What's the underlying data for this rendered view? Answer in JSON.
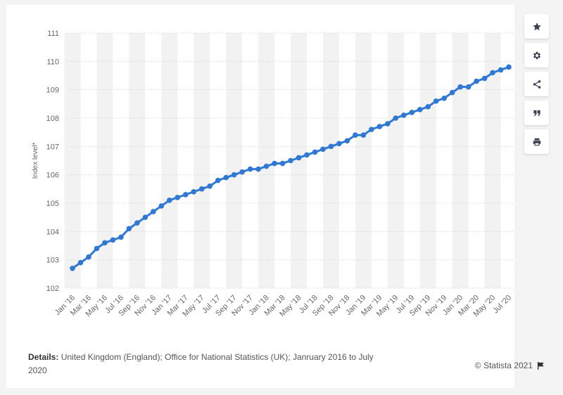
{
  "toolbar": {
    "icons": [
      "star-icon",
      "gear-icon",
      "share-icon",
      "quote-icon",
      "print-icon"
    ]
  },
  "footer": {
    "details_label": "Details:",
    "details_text": "United Kingdom (England); Office for National Statistics (UK); Janruary 2016 to July 2020",
    "credit": "© Statista 2021"
  },
  "colors": {
    "line": "#2f78d3",
    "grid": "#d0d0d0",
    "band": "#f2f2f2"
  },
  "chart_data": {
    "type": "line",
    "title": "",
    "xlabel": "",
    "ylabel": "Index level*",
    "ylim": [
      102,
      111
    ],
    "yticks": [
      102,
      103,
      104,
      105,
      106,
      107,
      108,
      109,
      110,
      111
    ],
    "grid": true,
    "categories": [
      "Jan '16",
      "Feb '16",
      "Mar '16",
      "Apr '16",
      "May '16",
      "Jun '16",
      "Jul '16",
      "Aug '16",
      "Sep '16",
      "Oct '16",
      "Nov '16",
      "Dec '16",
      "Jan '17",
      "Feb '17",
      "Mar '17",
      "Apr '17",
      "May '17",
      "Jun '17",
      "Jul '17",
      "Aug '17",
      "Sep '17",
      "Oct '17",
      "Nov '17",
      "Dec '17",
      "Jan '18",
      "Feb '18",
      "Mar '18",
      "Apr '18",
      "May '18",
      "Jun '18",
      "Jul '18",
      "Aug '18",
      "Sep '18",
      "Oct '18",
      "Nov '18",
      "Dec '18",
      "Jan '19",
      "Feb '19",
      "Mar '19",
      "Apr '19",
      "May '19",
      "Jun '19",
      "Jul '19",
      "Aug '19",
      "Sep '19",
      "Oct '19",
      "Nov '19",
      "Dec '19",
      "Jan '20",
      "Feb '20",
      "Mar '20",
      "Apr '20",
      "May '20",
      "Jun '20",
      "Jul '20"
    ],
    "tick_labels": [
      "Jan '16",
      "Mar '16",
      "May '16",
      "Jul '16",
      "Sep '16",
      "Nov '16",
      "Jan '17",
      "Mar '17",
      "May '17",
      "Jul '17",
      "Sep '17",
      "Nov '17",
      "Jan '18",
      "Mar '18",
      "May '18",
      "Jul '18",
      "Sep '18",
      "Nov '18",
      "Jan '19",
      "Mar '19",
      "May '19",
      "Jul '19",
      "Sep '19",
      "Nov '19",
      "Jan '20",
      "Mar '20",
      "May '20",
      "Jul '20"
    ],
    "values": [
      102.7,
      102.9,
      103.1,
      103.4,
      103.6,
      103.7,
      103.8,
      104.1,
      104.3,
      104.5,
      104.7,
      104.9,
      105.1,
      105.2,
      105.3,
      105.4,
      105.5,
      105.6,
      105.8,
      105.9,
      106.0,
      106.1,
      106.2,
      106.2,
      106.3,
      106.4,
      106.4,
      106.5,
      106.6,
      106.7,
      106.8,
      106.9,
      107.0,
      107.1,
      107.2,
      107.4,
      107.4,
      107.6,
      107.7,
      107.8,
      108.0,
      108.1,
      108.2,
      108.3,
      108.4,
      108.6,
      108.7,
      108.9,
      109.1,
      109.1,
      109.3,
      109.4,
      109.6,
      109.7,
      109.8
    ]
  }
}
